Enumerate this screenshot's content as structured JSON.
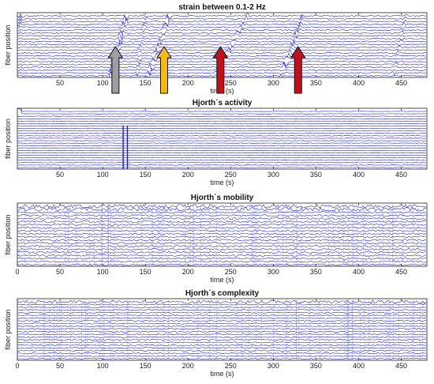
{
  "chart_data": [
    {
      "type": "line",
      "title": "strain between 0.1-2 Hz",
      "xlabel": "time (s)",
      "ylabel": "fiber position",
      "xlim": [
        0,
        480
      ],
      "xticks": [
        50,
        100,
        150,
        200,
        250,
        300,
        350,
        400,
        450
      ],
      "grid": false,
      "trace_color": "#1a1ac8",
      "annotations": [
        {
          "type": "arrow",
          "x": 115,
          "color": "#9e9e9e"
        },
        {
          "type": "arrow",
          "x": 172,
          "color": "#f6bb0f"
        },
        {
          "type": "arrow",
          "x": 238,
          "color": "#c0101a"
        },
        {
          "type": "arrow",
          "x": 329,
          "color": "#c0101a"
        }
      ]
    },
    {
      "type": "line",
      "title": "Hjorth´s activity",
      "xlabel": "time (s)",
      "ylabel": "fiber position",
      "xlim": [
        0,
        480
      ],
      "xticks": [
        50,
        100,
        150,
        200,
        250,
        300,
        350,
        400,
        450
      ],
      "grid": false,
      "trace_color": "#1a1ac8"
    },
    {
      "type": "line",
      "title": "Hjorth´s mobility",
      "xlabel": "time (s)",
      "ylabel": "fiber position",
      "xlim": [
        0,
        480
      ],
      "xticks": [
        0,
        50,
        100,
        150,
        200,
        250,
        300,
        350,
        400,
        450
      ],
      "grid": false,
      "trace_color": "#1a1ac8"
    },
    {
      "type": "line",
      "title": "Hjorth´s complexity",
      "xlabel": "time (s)",
      "ylabel": "fiber position",
      "xlim": [
        0,
        480
      ],
      "xticks": [
        0,
        50,
        100,
        150,
        200,
        250,
        300,
        350,
        400,
        450
      ],
      "grid": false,
      "trace_color": "#1a1ac8"
    }
  ]
}
